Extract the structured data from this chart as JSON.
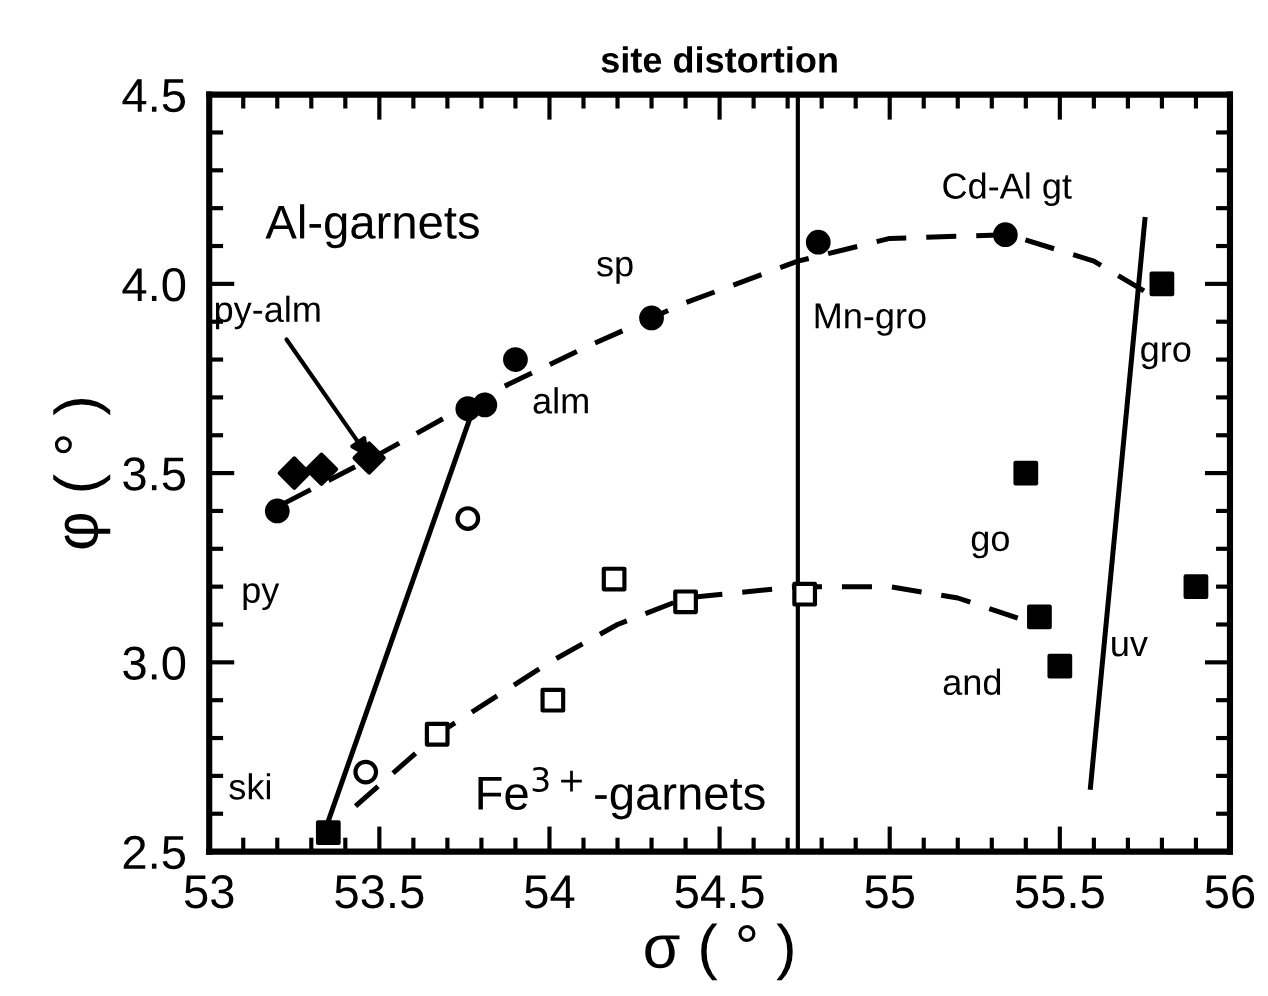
{
  "chart_data": {
    "type": "scatter",
    "title": "site distortion",
    "xlabel": "σ ( ° )",
    "ylabel": "φ ( ° )",
    "xlim": [
      53,
      56
    ],
    "ylim": [
      2.5,
      4.5
    ],
    "xticks": [
      53,
      53.5,
      54,
      54.5,
      55,
      55.5,
      56
    ],
    "yticks": [
      2.5,
      {
        "value": 3,
        "label": "3.0"
      },
      3.5,
      {
        "value": 4,
        "label": "4.0"
      },
      4.5
    ],
    "grid": false,
    "legend": false,
    "series": [
      {
        "type": "line",
        "line_style": "dashed",
        "marker": "none",
        "color": "#000000",
        "x": [
          53.22,
          53.5,
          53.8,
          54.1,
          54.4,
          54.73,
          55.0,
          55.35,
          55.6,
          55.75
        ],
        "values": [
          3.42,
          3.55,
          3.7,
          3.83,
          3.95,
          4.06,
          4.12,
          4.13,
          4.06,
          3.98
        ]
      },
      {
        "type": "line",
        "line_style": "dashed",
        "marker": "none",
        "color": "#000000",
        "x": [
          53.43,
          53.67,
          54.0,
          54.2,
          54.4,
          54.73,
          55.0,
          55.2,
          55.4
        ],
        "values": [
          2.62,
          2.81,
          3.0,
          3.1,
          3.17,
          3.2,
          3.2,
          3.17,
          3.11
        ]
      },
      {
        "type": "line",
        "line_style": "solid",
        "marker": "none",
        "color": "#000000",
        "x": [
          53.33,
          53.78
        ],
        "values": [
          2.53,
          3.68
        ]
      },
      {
        "type": "line",
        "line_style": "solid",
        "marker": "none",
        "color": "#000000",
        "x": [
          55.59,
          55.75
        ],
        "values": [
          2.67,
          4.17
        ]
      },
      {
        "marker": "circle",
        "color": "#000000",
        "x": [
          53.2,
          53.76,
          53.81,
          53.9,
          54.3,
          54.79,
          55.34
        ],
        "values": [
          3.4,
          3.67,
          3.68,
          3.8,
          3.91,
          4.11,
          4.13
        ]
      },
      {
        "marker": "diamond",
        "color": "#000000",
        "x": [
          53.25,
          53.33,
          53.47
        ],
        "values": [
          3.5,
          3.51,
          3.54
        ]
      },
      {
        "marker": "circle",
        "color": "#ffffff",
        "x": [
          53.46,
          53.76
        ],
        "values": [
          2.71,
          3.38
        ]
      },
      {
        "marker": "square",
        "color": "#ffffff",
        "x": [
          53.67,
          54.01,
          54.19,
          54.4,
          54.75
        ],
        "values": [
          2.81,
          2.9,
          3.22,
          3.16,
          3.18
        ]
      },
      {
        "marker": "square",
        "color": "#000000",
        "x": [
          53.35,
          55.8,
          55.4,
          55.44,
          55.5,
          55.9
        ],
        "values": [
          2.55,
          4.0,
          3.5,
          3.12,
          2.99,
          3.2
        ]
      }
    ],
    "ref_lines": [
      {
        "axis": "x",
        "value": 54.73,
        "color": "#000000",
        "line_style": "solid"
      }
    ],
    "annotations": [
      "Al-garnets",
      "Fe$^{3+}$-garnets",
      {
        "text": "py",
        "x": 53.2,
        "y": 3.4
      },
      {
        "text": "py-alm",
        "x": 53.47,
        "y": 3.54
      },
      {
        "text": "alm",
        "x": 53.81,
        "y": 3.68
      },
      {
        "text": "sp",
        "x": 54.3,
        "y": 3.91
      },
      {
        "text": "Mn-gro",
        "x": 54.79,
        "y": 4.11
      },
      {
        "text": "Cd-Al gt",
        "x": 55.34,
        "y": 4.13
      },
      {
        "text": "gro",
        "x": 55.8,
        "y": 4.0
      },
      {
        "text": "go",
        "x": 55.4,
        "y": 3.5
      },
      {
        "text": "and",
        "x": 55.44,
        "y": 3.12
      },
      {
        "text": "uv",
        "x": 55.9,
        "y": 3.2
      },
      {
        "text": "ski",
        "x": 53.35,
        "y": 2.55
      }
    ]
  }
}
